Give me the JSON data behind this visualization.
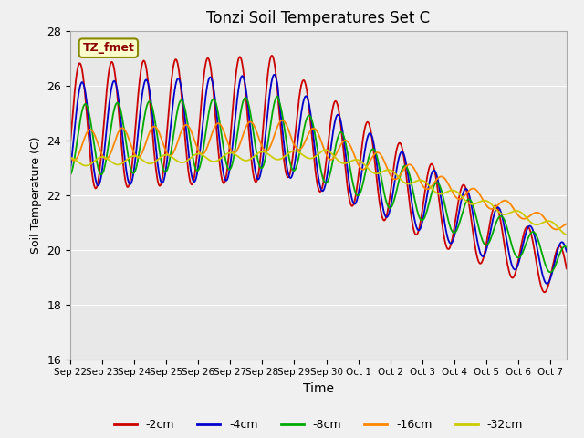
{
  "title": "Tonzi Soil Temperatures Set C",
  "xlabel": "Time",
  "ylabel": "Soil Temperature (C)",
  "ylim": [
    16,
    28
  ],
  "legend_label": "TZ_fmet",
  "x_tick_labels": [
    "Sep 22",
    "Sep 23",
    "Sep 24",
    "Sep 25",
    "Sep 26",
    "Sep 27",
    "Sep 28",
    "Sep 29",
    "Sep 30",
    "Oct 1",
    "Oct 2",
    "Oct 3",
    "Oct 4",
    "Oct 5",
    "Oct 6",
    "Oct 7"
  ],
  "series": {
    "-2cm": {
      "color": "#cc0000",
      "lw": 1.3
    },
    "-4cm": {
      "color": "#0000cc",
      "lw": 1.3
    },
    "-8cm": {
      "color": "#00aa00",
      "lw": 1.3
    },
    "-16cm": {
      "color": "#ff8800",
      "lw": 1.3
    },
    "-32cm": {
      "color": "#cccc00",
      "lw": 1.3
    }
  },
  "fig_facecolor": "#f0f0f0",
  "ax_facecolor": "#e8e8e8",
  "grid_color": "white"
}
